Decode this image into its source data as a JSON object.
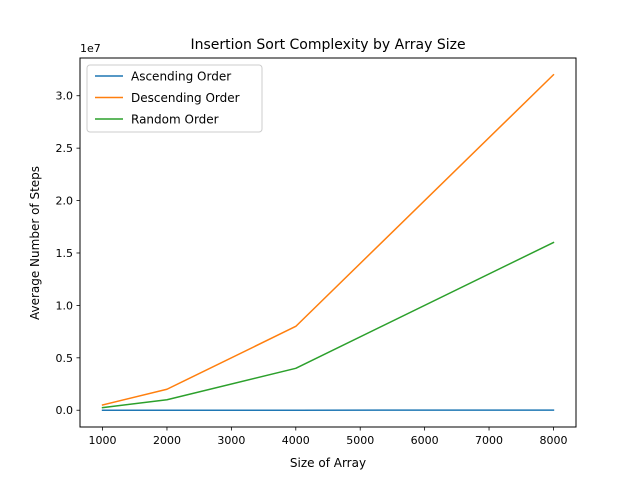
{
  "chart_data": {
    "type": "line",
    "title": "Insertion Sort Complexity by Array Size",
    "xlabel": "Size of Array",
    "ylabel": "Average Number of Steps",
    "y_offset_label": "1e7",
    "x": [
      1000,
      2000,
      4000,
      8000
    ],
    "series": [
      {
        "name": "Ascending Order",
        "color": "#1f77b4",
        "values": [
          999,
          1999,
          3999,
          7999
        ]
      },
      {
        "name": "Descending Order",
        "color": "#ff7f0e",
        "values": [
          500000,
          2000000,
          8000000,
          32000000
        ]
      },
      {
        "name": "Random Order",
        "color": "#2ca02c",
        "values": [
          250000,
          1000000,
          4000000,
          16000000
        ]
      }
    ],
    "xlim": [
      650,
      8350
    ],
    "ylim": [
      -1600000,
      33600000
    ],
    "x_ticks": [
      1000,
      2000,
      3000,
      4000,
      5000,
      6000,
      7000,
      8000
    ],
    "x_tick_labels": [
      "1000",
      "2000",
      "3000",
      "4000",
      "5000",
      "6000",
      "7000",
      "8000"
    ],
    "y_ticks": [
      0,
      5000000,
      10000000,
      15000000,
      20000000,
      25000000,
      30000000
    ],
    "y_tick_labels": [
      "0.0",
      "0.5",
      "1.0",
      "1.5",
      "2.0",
      "2.5",
      "3.0"
    ],
    "grid": false,
    "legend_position": "top-left"
  }
}
